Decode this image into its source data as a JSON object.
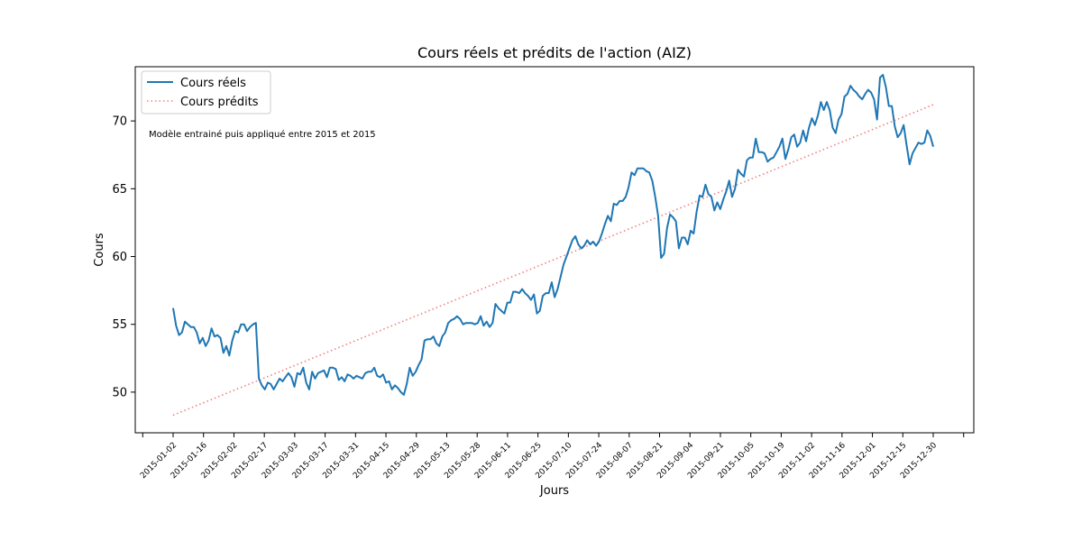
{
  "chart_data": {
    "type": "line",
    "title": "Cours réels et prédits de l'action (AIZ)",
    "xlabel": "Jours",
    "ylabel": "Cours",
    "annotation": "Modèle entrainé puis appliqué entre 2015 et 2015",
    "ylim": [
      47.0,
      74.0
    ],
    "yticks": [
      50,
      55,
      60,
      65,
      70
    ],
    "xtick_labels": [
      "2015-01-02",
      "2015-01-16",
      "2015-02-02",
      "2015-02-17",
      "2015-03-03",
      "2015-03-17",
      "2015-03-31",
      "2015-04-15",
      "2015-04-29",
      "2015-05-13",
      "2015-05-28",
      "2015-06-11",
      "2015-06-25",
      "2015-07-10",
      "2015-07-24",
      "2015-08-07",
      "2015-08-21",
      "2015-09-04",
      "2015-09-21",
      "2015-10-05",
      "2015-10-19",
      "2015-11-02",
      "2015-11-16",
      "2015-12-01",
      "2015-12-15",
      "2015-12-30"
    ],
    "legend_position": "upper-left",
    "series": [
      {
        "name": "Cours réels",
        "color": "#1f77b4",
        "style": "solid",
        "values": [
          56.2,
          54.9,
          54.2,
          54.4,
          55.2,
          55.0,
          54.8,
          54.8,
          54.4,
          53.6,
          54.0,
          53.4,
          53.8,
          54.7,
          54.1,
          54.2,
          54.0,
          52.9,
          53.4,
          52.7,
          53.8,
          54.5,
          54.4,
          55.0,
          55.0,
          54.5,
          54.8,
          55.0,
          55.1,
          51.0,
          50.5,
          50.2,
          50.7,
          50.6,
          50.2,
          50.6,
          51.0,
          50.8,
          51.1,
          51.4,
          51.1,
          50.4,
          51.4,
          51.3,
          51.8,
          50.7,
          50.2,
          51.5,
          51.0,
          51.4,
          51.5,
          51.6,
          51.1,
          51.8,
          51.8,
          51.7,
          50.9,
          51.1,
          50.8,
          51.3,
          51.2,
          51.0,
          51.2,
          51.1,
          51.0,
          51.4,
          51.5,
          51.5,
          51.8,
          51.2,
          51.1,
          51.3,
          50.7,
          50.8,
          50.2,
          50.5,
          50.3,
          50.0,
          49.8,
          50.6,
          51.8,
          51.2,
          51.5,
          52.0,
          52.4,
          53.8,
          53.9,
          53.9,
          54.1,
          53.6,
          53.4,
          54.1,
          54.4,
          55.1,
          55.3,
          55.4,
          55.6,
          55.4,
          55.0,
          55.1,
          55.1,
          55.1,
          55.0,
          55.1,
          55.6,
          54.9,
          55.2,
          54.8,
          55.1,
          56.5,
          56.2,
          56.0,
          55.8,
          56.6,
          56.6,
          57.4,
          57.4,
          57.3,
          57.6,
          57.3,
          57.1,
          56.8,
          57.2,
          55.8,
          56.0,
          57.1,
          57.3,
          57.3,
          58.1,
          57.0,
          57.6,
          58.5,
          59.4,
          60.0,
          60.6,
          61.2,
          61.5,
          60.9,
          60.6,
          60.8,
          61.2,
          60.9,
          61.1,
          60.8,
          61.1,
          61.7,
          62.4,
          63.0,
          62.6,
          63.9,
          63.8,
          64.1,
          64.1,
          64.4,
          65.1,
          66.2,
          66.0,
          66.5,
          66.5,
          66.5,
          66.3,
          66.2,
          65.6,
          64.4,
          63.0,
          59.9,
          60.2,
          62.1,
          63.1,
          62.9,
          62.6,
          60.6,
          61.4,
          61.4,
          60.9,
          61.9,
          61.7,
          63.3,
          64.5,
          64.4,
          65.3,
          64.6,
          64.4,
          63.4,
          64.0,
          63.5,
          64.2,
          64.8,
          65.6,
          64.4,
          65.0,
          66.4,
          66.1,
          65.9,
          67.1,
          67.3,
          67.3,
          68.7,
          67.7,
          67.7,
          67.6,
          67.0,
          67.2,
          67.3,
          67.7,
          68.1,
          68.7,
          67.2,
          67.9,
          68.8,
          69.0,
          68.1,
          68.4,
          69.3,
          68.5,
          69.5,
          70.2,
          69.7,
          70.4,
          71.4,
          70.8,
          71.4,
          70.8,
          69.5,
          69.1,
          70.1,
          70.5,
          71.8,
          72.0,
          72.6,
          72.3,
          72.1,
          71.8,
          71.6,
          72.0,
          72.3,
          72.1,
          71.6,
          70.1,
          73.2,
          73.4,
          72.5,
          71.1,
          71.1,
          69.6,
          68.8,
          69.1,
          69.7,
          68.2,
          66.8,
          67.6,
          68.0,
          68.4,
          68.3,
          68.4,
          69.3,
          68.9,
          68.1
        ]
      },
      {
        "name": "Cours prédits",
        "color": "#f08080",
        "style": "dotted",
        "values_linear": [
          48.3,
          71.2
        ]
      }
    ]
  }
}
